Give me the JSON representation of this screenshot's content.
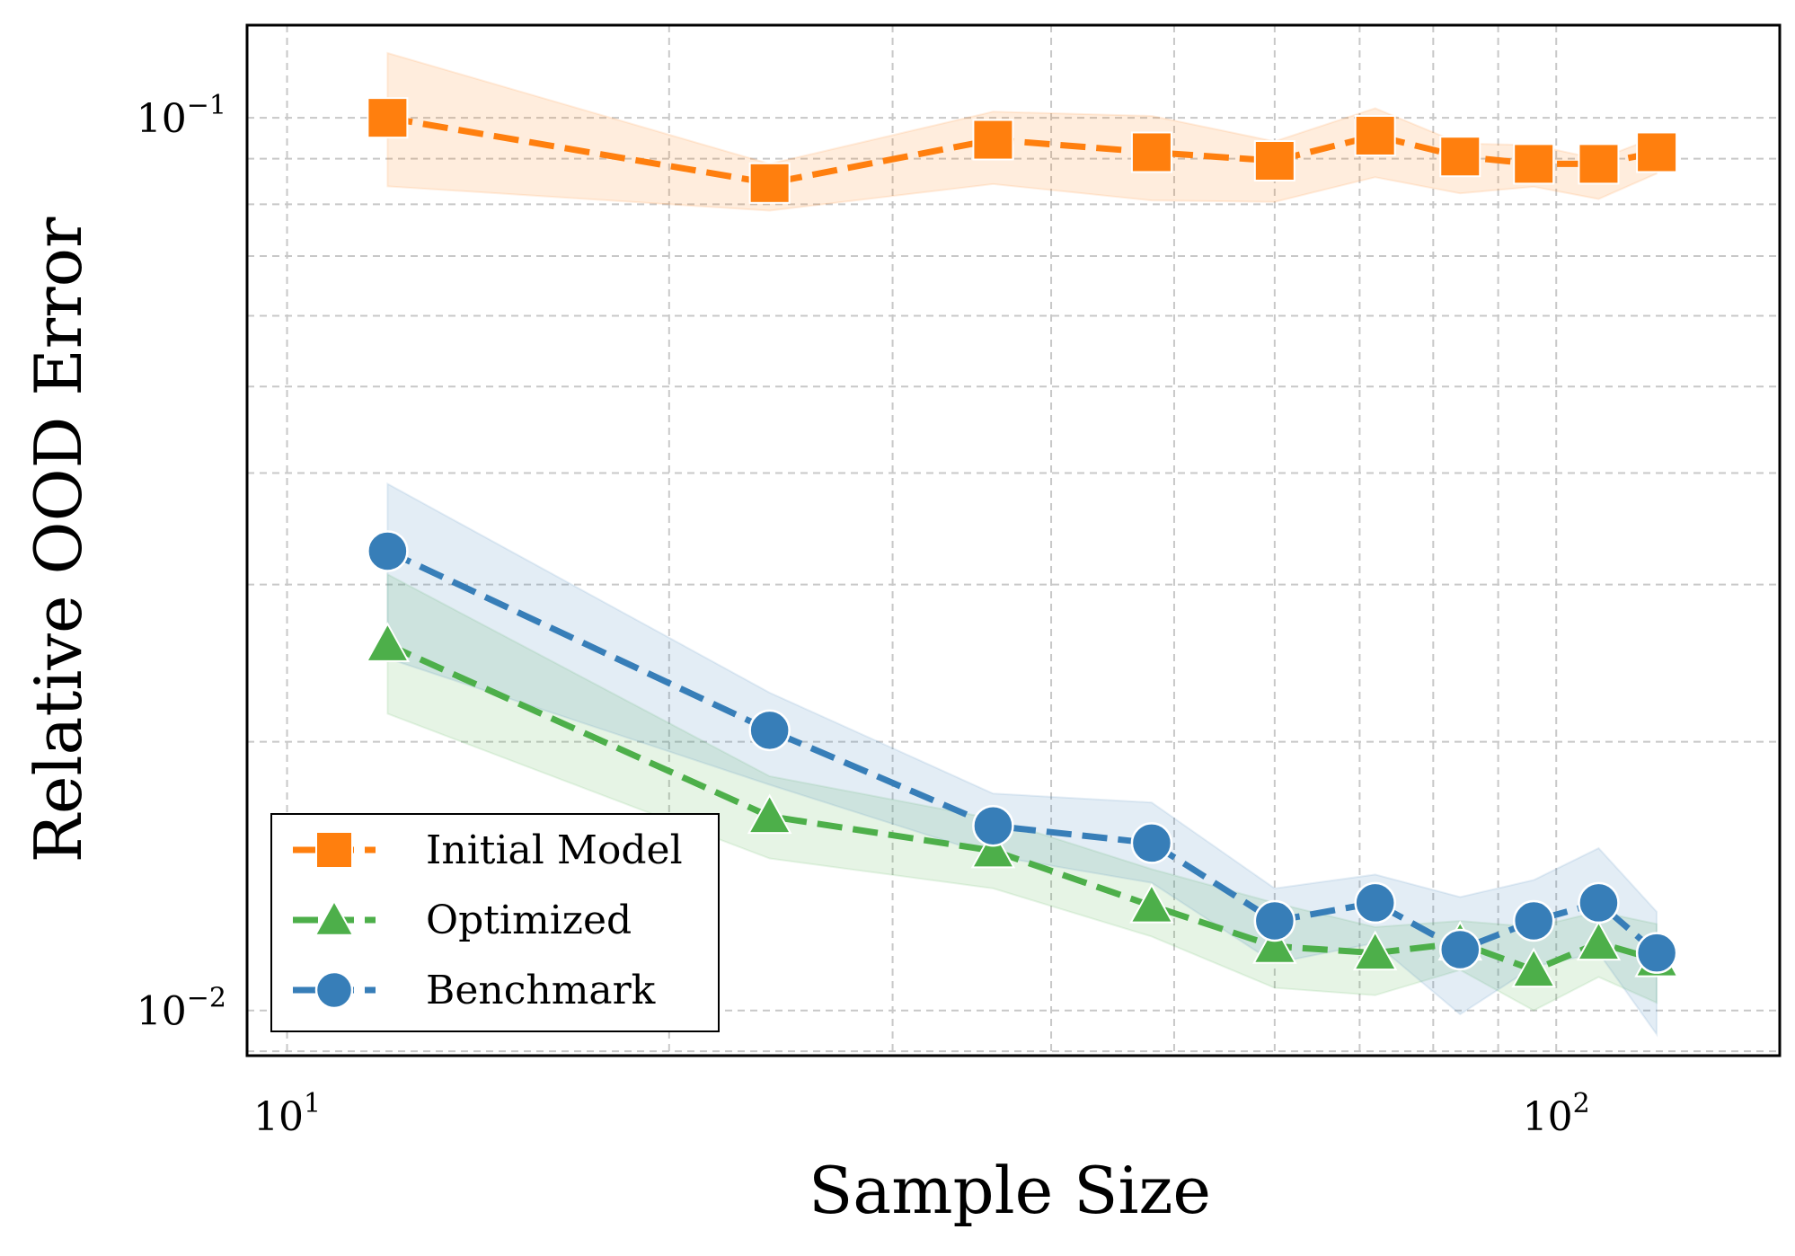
{
  "chart_data": {
    "type": "line",
    "xscale": "log",
    "yscale": "log",
    "xlabel": "Sample Size",
    "ylabel": "Relative OOD Error",
    "xlim": [
      9.3,
      150
    ],
    "ylim": [
      0.0089,
      0.127
    ],
    "x": [
      12,
      24,
      36,
      48,
      60,
      72,
      84,
      96,
      108,
      120
    ],
    "x_ticks": [
      {
        "base": "10",
        "exp": "1",
        "value": 10
      },
      {
        "base": "10",
        "exp": "2",
        "value": 100
      }
    ],
    "y_ticks": [
      {
        "base": "10",
        "exp": "−1",
        "value": 0.1
      },
      {
        "base": "10",
        "exp": "−2",
        "value": 0.01
      }
    ],
    "grid": true,
    "legend_position": "lower-left",
    "series": [
      {
        "name": "Initial Model",
        "color": "#ff7f0e",
        "marker": "square",
        "values": [
          0.1,
          0.0845,
          0.0945,
          0.0915,
          0.0895,
          0.0955,
          0.0905,
          0.0888,
          0.0888,
          0.0915
        ],
        "lower": [
          0.0838,
          0.0787,
          0.0843,
          0.0808,
          0.0805,
          0.0858,
          0.0823,
          0.0837,
          0.0811,
          0.0866
        ],
        "upper": [
          0.1182,
          0.0888,
          0.1016,
          0.1005,
          0.0941,
          0.1025,
          0.0936,
          0.0932,
          0.0899,
          0.0952
        ]
      },
      {
        "name": "Optimized",
        "color": "#4daf4a",
        "marker": "triangle",
        "values": [
          0.0257,
          0.0165,
          0.0151,
          0.0131,
          0.0118,
          0.0116,
          0.0119,
          0.0111,
          0.0119,
          0.0114
        ],
        "lower": [
          0.0215,
          0.0148,
          0.0137,
          0.0121,
          0.0106,
          0.0104,
          0.0111,
          0.01,
          0.0109,
          0.0102
        ],
        "upper": [
          0.0308,
          0.0183,
          0.0164,
          0.0144,
          0.0132,
          0.0124,
          0.0126,
          0.0124,
          0.0129,
          0.0125
        ]
      },
      {
        "name": "Benchmark",
        "color": "#377eb8",
        "marker": "circle",
        "values": [
          0.0327,
          0.0206,
          0.0161,
          0.0154,
          0.0126,
          0.0132,
          0.0117,
          0.0126,
          0.0132,
          0.0116
        ],
        "lower": [
          0.0248,
          0.0179,
          0.0149,
          0.0139,
          0.0113,
          0.0119,
          0.0099,
          0.0112,
          0.0116,
          0.0094
        ],
        "upper": [
          0.0389,
          0.0227,
          0.0175,
          0.0171,
          0.0137,
          0.0142,
          0.0134,
          0.014,
          0.0152,
          0.0129
        ]
      }
    ]
  }
}
